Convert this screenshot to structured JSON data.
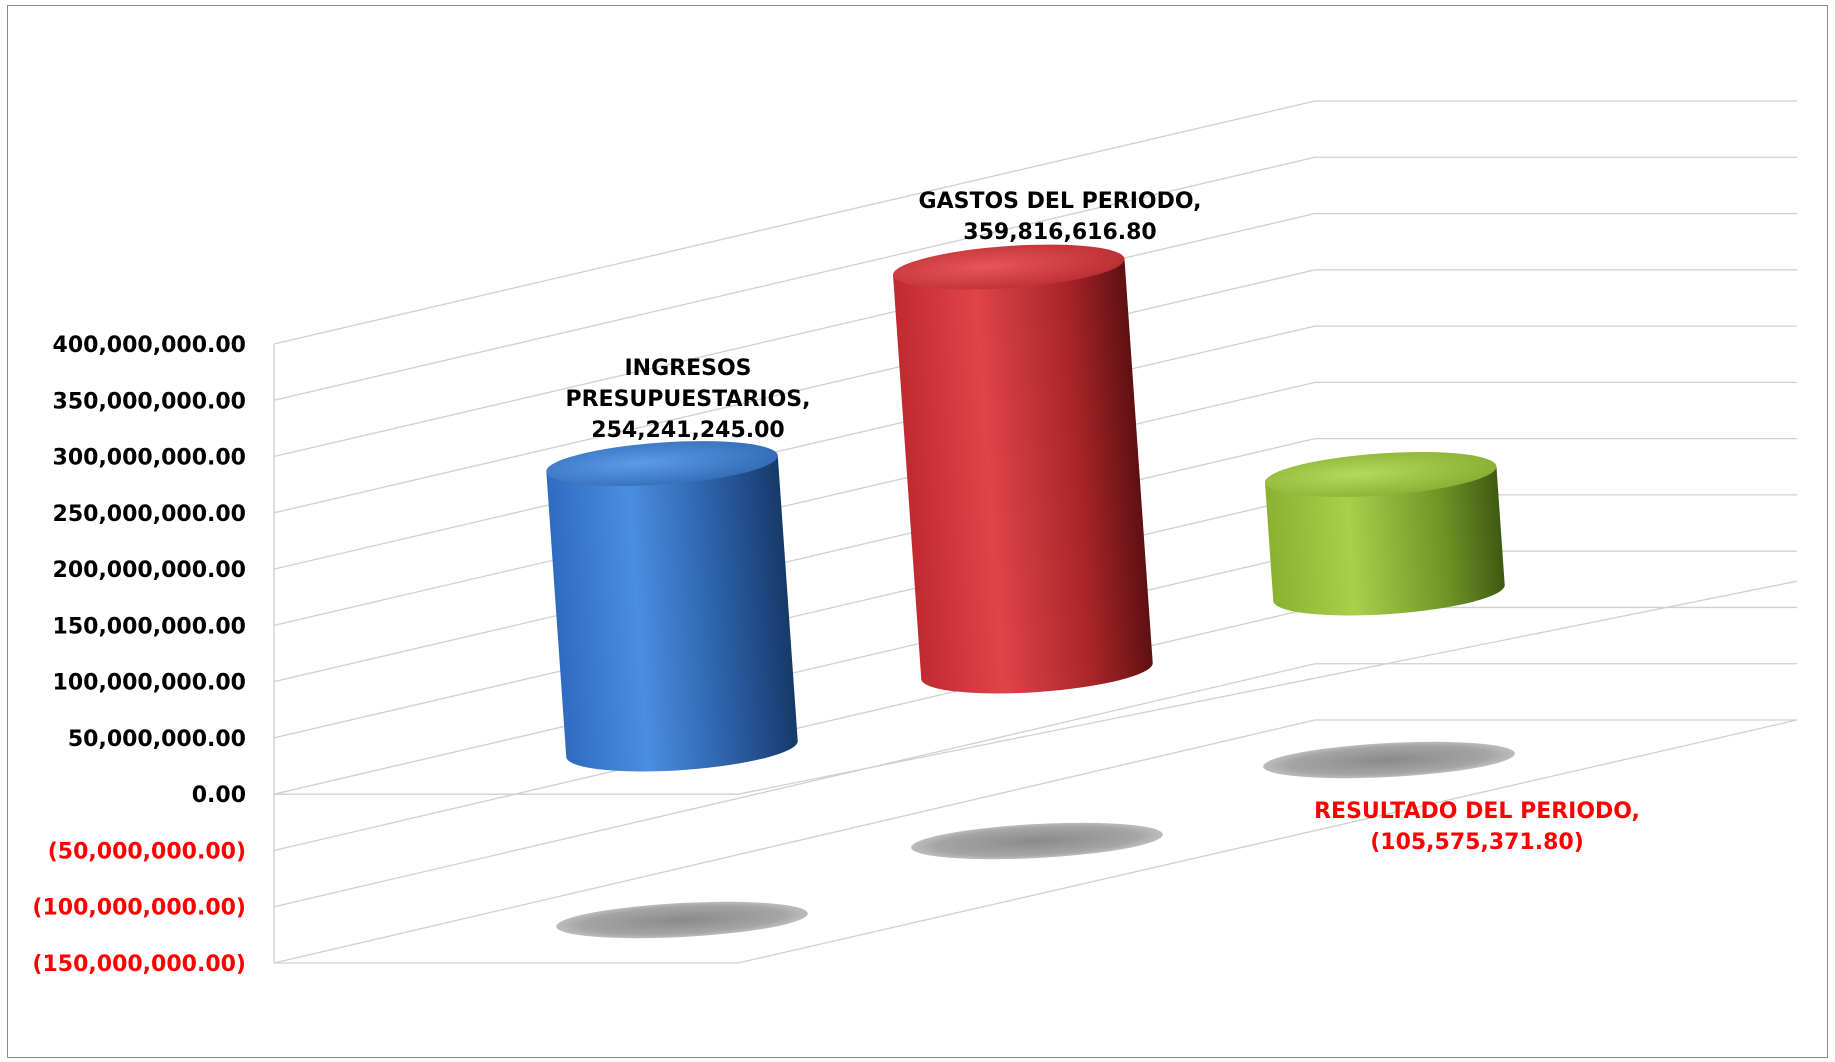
{
  "chart_data": {
    "type": "bar",
    "style": "3d-cylinder",
    "categories": [
      "INGRESOS PRESUPUESTARIOS",
      "GASTOS DEL PERIODO",
      "RESULTADO DEL PERIODO"
    ],
    "values": [
      254241245.0,
      359816616.8,
      -105575371.8
    ],
    "data_labels": [
      {
        "lines": [
          "INGRESOS",
          "PRESUPUESTARIOS,",
          "254,241,245.00"
        ]
      },
      {
        "lines": [
          "GASTOS DEL PERIODO,",
          "359,816,616.80"
        ]
      },
      {
        "lines": [
          "RESULTADO DEL PERIODO,",
          "(105,575,371.80)"
        ]
      }
    ],
    "bar_colors": [
      "#3a78c8",
      "#c8353a",
      "#8db33a"
    ],
    "negative_label_color": "#ff0000",
    "positive_label_color": "#000000",
    "ylim": [
      -150000000,
      400000000
    ],
    "yticks": [
      400000000,
      350000000,
      300000000,
      250000000,
      200000000,
      150000000,
      100000000,
      50000000,
      0,
      -50000000,
      -100000000,
      -150000000
    ],
    "ytick_labels": [
      "400,000,000.00",
      "350,000,000.00",
      "300,000,000.00",
      "250,000,000.00",
      "200,000,000.00",
      "150,000,000.00",
      "100,000,000.00",
      "50,000,000.00",
      "0.00",
      "(50,000,000.00)",
      "(100,000,000.00)",
      "(150,000,000.00)"
    ],
    "grid": true,
    "legend": "none",
    "title": "",
    "xlabel": "",
    "ylabel": ""
  }
}
